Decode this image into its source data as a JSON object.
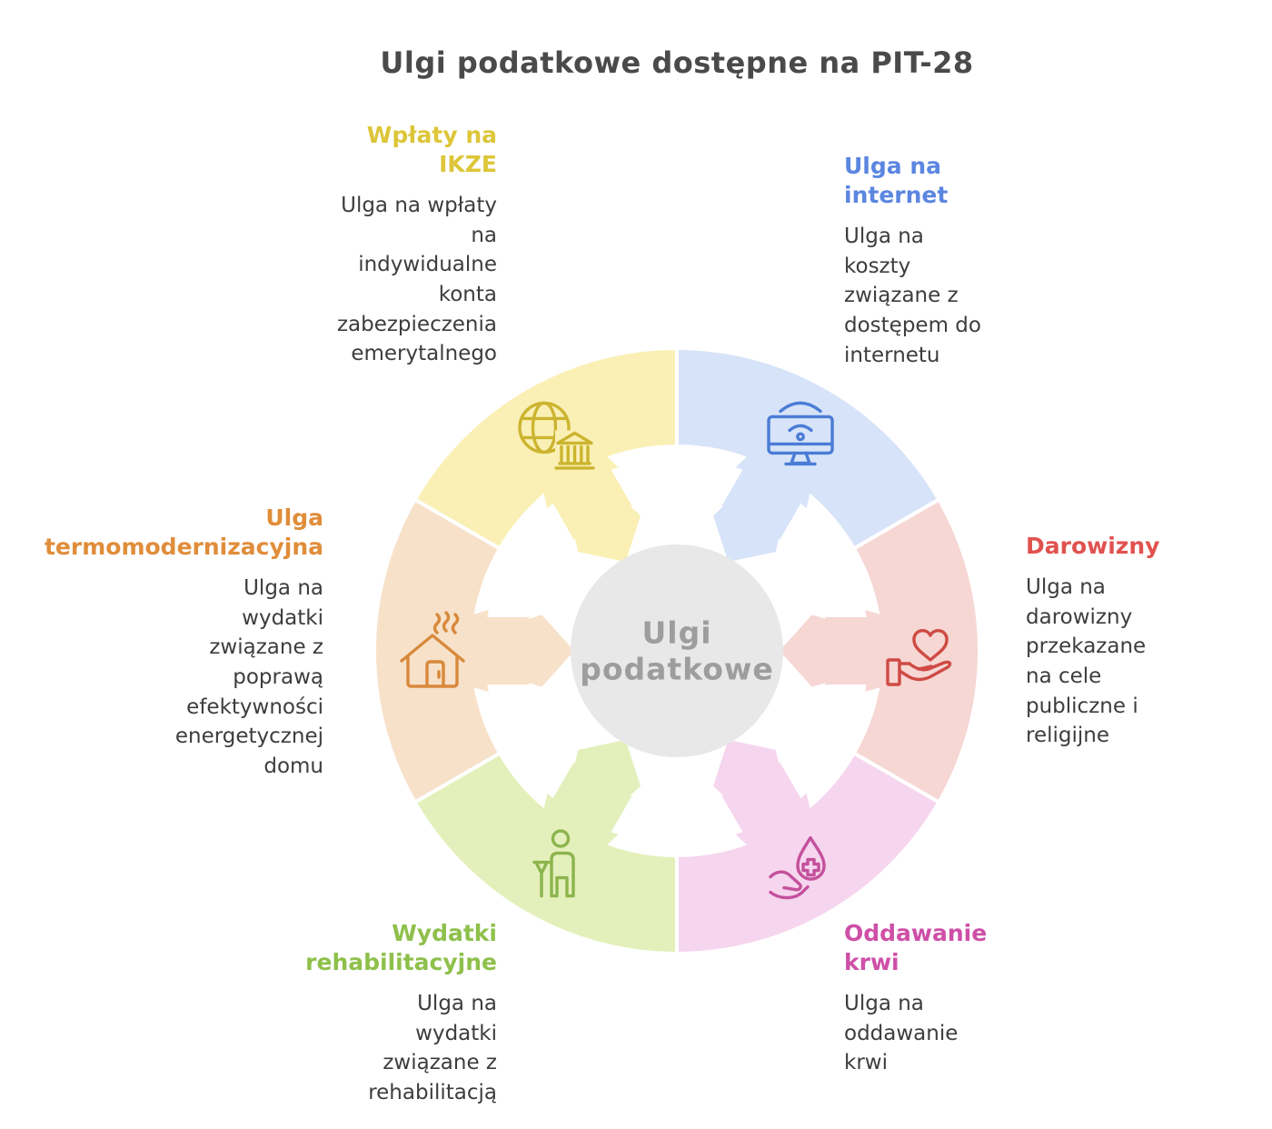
{
  "title": "Ulgi podatkowe dostępne na PIT-28",
  "diagram": {
    "center_label": "Ulgi\npodatkowe",
    "center_fill": "#e8e8e8",
    "center_text_color": "#9d9d9d",
    "sectors": [
      {
        "id": "ulga-na-internet",
        "heading": "Ulga na\ninternet",
        "body": "Ulga na\nkoszty\nzwiązane z\ndostępem do\ninternetu",
        "heading_color": "#5b86e0",
        "fill": "#d7e3f8",
        "icon_color": "#4a7cd6",
        "icon": "monitor-wifi-icon",
        "mid_angle_deg": 30
      },
      {
        "id": "darowizny",
        "heading": "Darowizny",
        "body": "Ulga na\ndarowizny\nprzekazane\nna cele\npubliczne i\nreligijne",
        "heading_color": "#e0524e",
        "fill": "#f6d7d3",
        "icon_color": "#cf4a44",
        "icon": "heart-hand-icon",
        "mid_angle_deg": 90
      },
      {
        "id": "oddawanie-krwi",
        "heading": "Oddawanie\nkrwi",
        "body": "Ulga na\noddawanie\nkrwi",
        "heading_color": "#ce4fa7",
        "fill": "#f6d5ee",
        "icon_color": "#c4509c",
        "icon": "blood-drop-hand-icon",
        "mid_angle_deg": 150
      },
      {
        "id": "wydatki-rehabilitacyjne",
        "heading": "Wydatki\nrehabilitacyjne",
        "body": "Ulga na\nwydatki\nzwiązane z\nrehabilitacją",
        "heading_color": "#8ec04b",
        "fill": "#e4f0bb",
        "icon_color": "#8cb44c",
        "icon": "person-crutch-icon",
        "mid_angle_deg": 210
      },
      {
        "id": "ulga-termomodernizacyjna",
        "heading": "Ulga\ntermomodernizacyjna",
        "body": "Ulga na\nwydatki\nzwiązane z\npoprawą\nefektywności\nenergetycznej\ndomu",
        "heading_color": "#e08d3a",
        "fill": "#f7e1c9",
        "icon_color": "#d8893b",
        "icon": "house-heat-icon",
        "mid_angle_deg": 270
      },
      {
        "id": "wplaty-na-ikze",
        "heading": "Wpłaty na\nIKZE",
        "body": "Ulga na wpłaty\nna\nindywidualne\nkonta\nzabezpieczenia\nemerytalnego",
        "heading_color": "#ddc639",
        "fill": "#faf0b5",
        "icon_color": "#ccb42f",
        "icon": "globe-bank-icon",
        "mid_angle_deg": 330
      }
    ]
  }
}
